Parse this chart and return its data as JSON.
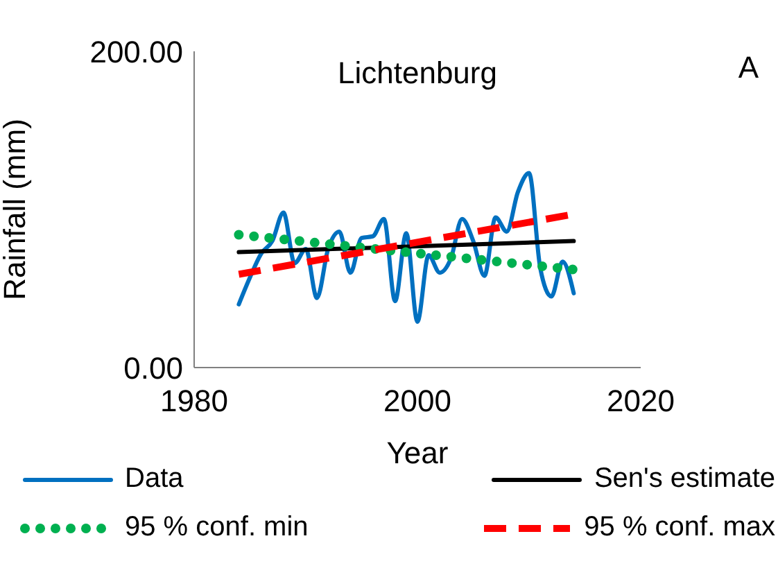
{
  "chart_data": {
    "type": "line",
    "title": "Lichtenburg",
    "xlabel": "Year",
    "ylabel": "Rainfall (mm)",
    "annotations": [
      "A"
    ],
    "xlim": [
      1980,
      2020
    ],
    "xticks": [
      1980,
      2000,
      2020
    ],
    "ylim": [
      0,
      200
    ],
    "yticks": [
      {
        "value": 0,
        "label": "0.00"
      },
      {
        "value": 200,
        "label": "200.00"
      }
    ],
    "grid": false,
    "legend": "bottom",
    "marker": "none",
    "series": [
      {
        "name": "Data",
        "color": "#0070c0",
        "line_style": "solid",
        "x": [
          1984,
          1985,
          1986,
          1987,
          1988,
          1989,
          1990,
          1991,
          1992,
          1993,
          1994,
          1995,
          1996,
          1997,
          1998,
          1999,
          2000,
          2001,
          2002,
          2003,
          2004,
          2005,
          2006,
          2007,
          2008,
          2009,
          2010,
          2011,
          2012,
          2013,
          2014
        ],
        "values": [
          40,
          57,
          72,
          80,
          98,
          66,
          75,
          44,
          75,
          86,
          60,
          82,
          83,
          94,
          42,
          85,
          29,
          71,
          60,
          69,
          94,
          80,
          58,
          95,
          86,
          111,
          123,
          63,
          45,
          67,
          47
        ]
      },
      {
        "name": "Sen's estimate",
        "color": "#000000",
        "line_style": "solid",
        "x": [
          1984,
          2014
        ],
        "values": [
          73,
          80
        ]
      },
      {
        "name": "95 % conf. min",
        "color": "#00b050",
        "line_style": "dotted",
        "x": [
          1984,
          2014
        ],
        "values": [
          84,
          62
        ]
      },
      {
        "name": "95 % conf. max",
        "color": "#ff0000",
        "line_style": "dashed",
        "x": [
          1984,
          2014
        ],
        "values": [
          59,
          97
        ]
      }
    ]
  }
}
